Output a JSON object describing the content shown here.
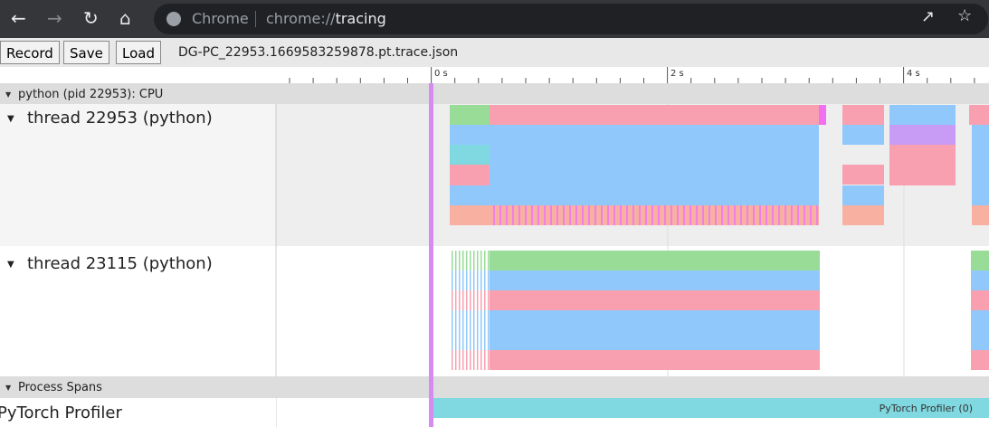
{
  "browser": {
    "omnibox_chip": "Chrome",
    "url_scheme": "chrome://",
    "url_host": "tracing"
  },
  "toolbar": {
    "buttons": [
      "Record",
      "Save",
      "Load"
    ],
    "filename": "DG-PC_22953.1669583259878.pt.trace.json"
  },
  "ruler": {
    "labels": [
      "0 s",
      "2 s",
      "4 s"
    ]
  },
  "tracks": {
    "process": "python (pid 22953): CPU",
    "threads": [
      "thread 22953 (python)",
      "thread 23115 (python)"
    ],
    "spans_header": "Process Spans",
    "spans_track": "PyTorch Profiler",
    "span_label": "PyTorch Profiler (0)"
  }
}
